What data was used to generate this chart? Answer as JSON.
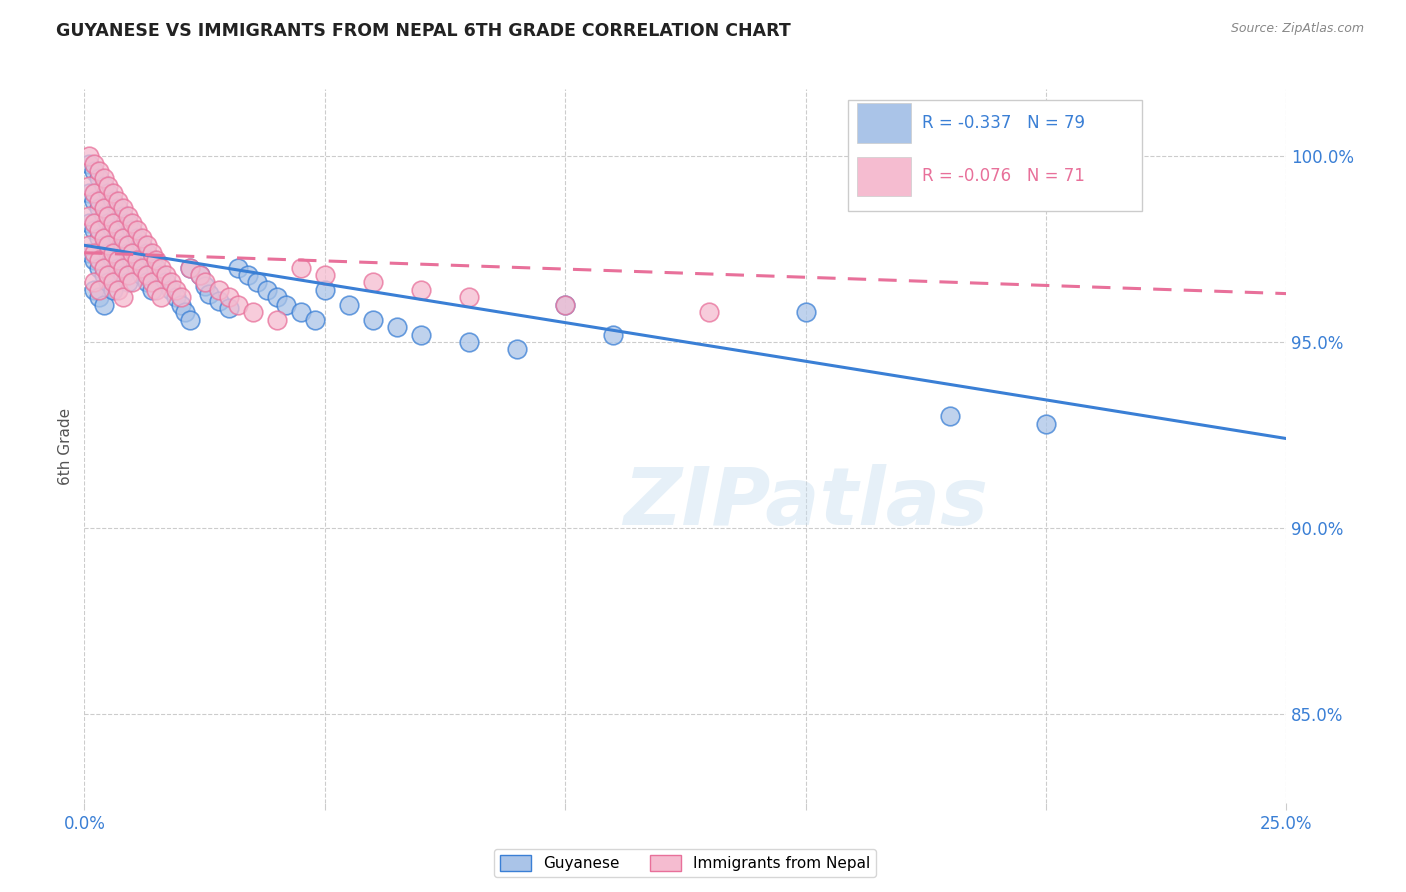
{
  "title": "GUYANESE VS IMMIGRANTS FROM NEPAL 6TH GRADE CORRELATION CHART",
  "source": "Source: ZipAtlas.com",
  "ylabel": "6th Grade",
  "ytick_labels": [
    "85.0%",
    "90.0%",
    "95.0%",
    "100.0%"
  ],
  "ytick_values": [
    0.85,
    0.9,
    0.95,
    1.0
  ],
  "xmin": 0.0,
  "xmax": 0.25,
  "ymin": 0.826,
  "ymax": 1.018,
  "legend_blue_label": "Guyanese",
  "legend_pink_label": "Immigrants from Nepal",
  "legend_R_blue": "R = -0.337",
  "legend_N_blue": "N = 79",
  "legend_R_pink": "R = -0.076",
  "legend_N_pink": "N = 71",
  "watermark": "ZIPatlas",
  "blue_color": "#aac4e8",
  "pink_color": "#f5bcd0",
  "blue_line_color": "#3a7fd5",
  "pink_line_color": "#e8709a",
  "blue_scatter": [
    [
      0.001,
      0.998
    ],
    [
      0.001,
      0.99
    ],
    [
      0.001,
      0.982
    ],
    [
      0.001,
      0.974
    ],
    [
      0.002,
      0.996
    ],
    [
      0.002,
      0.988
    ],
    [
      0.002,
      0.98
    ],
    [
      0.002,
      0.972
    ],
    [
      0.002,
      0.964
    ],
    [
      0.003,
      0.994
    ],
    [
      0.003,
      0.986
    ],
    [
      0.003,
      0.978
    ],
    [
      0.003,
      0.97
    ],
    [
      0.003,
      0.962
    ],
    [
      0.004,
      0.992
    ],
    [
      0.004,
      0.984
    ],
    [
      0.004,
      0.976
    ],
    [
      0.004,
      0.968
    ],
    [
      0.004,
      0.96
    ],
    [
      0.005,
      0.99
    ],
    [
      0.005,
      0.982
    ],
    [
      0.005,
      0.974
    ],
    [
      0.005,
      0.966
    ],
    [
      0.006,
      0.988
    ],
    [
      0.006,
      0.98
    ],
    [
      0.006,
      0.972
    ],
    [
      0.006,
      0.964
    ],
    [
      0.007,
      0.986
    ],
    [
      0.007,
      0.978
    ],
    [
      0.007,
      0.97
    ],
    [
      0.008,
      0.984
    ],
    [
      0.008,
      0.976
    ],
    [
      0.008,
      0.968
    ],
    [
      0.009,
      0.982
    ],
    [
      0.009,
      0.974
    ],
    [
      0.009,
      0.966
    ],
    [
      0.01,
      0.98
    ],
    [
      0.01,
      0.972
    ],
    [
      0.011,
      0.978
    ],
    [
      0.011,
      0.97
    ],
    [
      0.012,
      0.976
    ],
    [
      0.012,
      0.968
    ],
    [
      0.013,
      0.974
    ],
    [
      0.013,
      0.966
    ],
    [
      0.014,
      0.972
    ],
    [
      0.014,
      0.964
    ],
    [
      0.015,
      0.97
    ],
    [
      0.016,
      0.968
    ],
    [
      0.017,
      0.966
    ],
    [
      0.018,
      0.964
    ],
    [
      0.019,
      0.962
    ],
    [
      0.02,
      0.96
    ],
    [
      0.021,
      0.958
    ],
    [
      0.022,
      0.97
    ],
    [
      0.022,
      0.956
    ],
    [
      0.024,
      0.968
    ],
    [
      0.025,
      0.965
    ],
    [
      0.026,
      0.963
    ],
    [
      0.028,
      0.961
    ],
    [
      0.03,
      0.959
    ],
    [
      0.032,
      0.97
    ],
    [
      0.034,
      0.968
    ],
    [
      0.036,
      0.966
    ],
    [
      0.038,
      0.964
    ],
    [
      0.04,
      0.962
    ],
    [
      0.042,
      0.96
    ],
    [
      0.045,
      0.958
    ],
    [
      0.048,
      0.956
    ],
    [
      0.05,
      0.964
    ],
    [
      0.055,
      0.96
    ],
    [
      0.06,
      0.956
    ],
    [
      0.065,
      0.954
    ],
    [
      0.07,
      0.952
    ],
    [
      0.08,
      0.95
    ],
    [
      0.09,
      0.948
    ],
    [
      0.1,
      0.96
    ],
    [
      0.11,
      0.952
    ],
    [
      0.15,
      0.958
    ],
    [
      0.18,
      0.93
    ],
    [
      0.2,
      0.928
    ]
  ],
  "pink_scatter": [
    [
      0.001,
      1.0
    ],
    [
      0.001,
      0.992
    ],
    [
      0.001,
      0.984
    ],
    [
      0.001,
      0.976
    ],
    [
      0.002,
      0.998
    ],
    [
      0.002,
      0.99
    ],
    [
      0.002,
      0.982
    ],
    [
      0.002,
      0.974
    ],
    [
      0.002,
      0.966
    ],
    [
      0.003,
      0.996
    ],
    [
      0.003,
      0.988
    ],
    [
      0.003,
      0.98
    ],
    [
      0.003,
      0.972
    ],
    [
      0.003,
      0.964
    ],
    [
      0.004,
      0.994
    ],
    [
      0.004,
      0.986
    ],
    [
      0.004,
      0.978
    ],
    [
      0.004,
      0.97
    ],
    [
      0.005,
      0.992
    ],
    [
      0.005,
      0.984
    ],
    [
      0.005,
      0.976
    ],
    [
      0.005,
      0.968
    ],
    [
      0.006,
      0.99
    ],
    [
      0.006,
      0.982
    ],
    [
      0.006,
      0.974
    ],
    [
      0.006,
      0.966
    ],
    [
      0.007,
      0.988
    ],
    [
      0.007,
      0.98
    ],
    [
      0.007,
      0.972
    ],
    [
      0.007,
      0.964
    ],
    [
      0.008,
      0.986
    ],
    [
      0.008,
      0.978
    ],
    [
      0.008,
      0.97
    ],
    [
      0.008,
      0.962
    ],
    [
      0.009,
      0.984
    ],
    [
      0.009,
      0.976
    ],
    [
      0.009,
      0.968
    ],
    [
      0.01,
      0.982
    ],
    [
      0.01,
      0.974
    ],
    [
      0.01,
      0.966
    ],
    [
      0.011,
      0.98
    ],
    [
      0.011,
      0.972
    ],
    [
      0.012,
      0.978
    ],
    [
      0.012,
      0.97
    ],
    [
      0.013,
      0.976
    ],
    [
      0.013,
      0.968
    ],
    [
      0.014,
      0.974
    ],
    [
      0.014,
      0.966
    ],
    [
      0.015,
      0.972
    ],
    [
      0.015,
      0.964
    ],
    [
      0.016,
      0.97
    ],
    [
      0.016,
      0.962
    ],
    [
      0.017,
      0.968
    ],
    [
      0.018,
      0.966
    ],
    [
      0.019,
      0.964
    ],
    [
      0.02,
      0.962
    ],
    [
      0.022,
      0.97
    ],
    [
      0.024,
      0.968
    ],
    [
      0.025,
      0.966
    ],
    [
      0.028,
      0.964
    ],
    [
      0.03,
      0.962
    ],
    [
      0.032,
      0.96
    ],
    [
      0.035,
      0.958
    ],
    [
      0.04,
      0.956
    ],
    [
      0.045,
      0.97
    ],
    [
      0.05,
      0.968
    ],
    [
      0.06,
      0.966
    ],
    [
      0.07,
      0.964
    ],
    [
      0.08,
      0.962
    ],
    [
      0.1,
      0.96
    ],
    [
      0.13,
      0.958
    ]
  ],
  "blue_line_x": [
    0.0,
    0.25
  ],
  "blue_line_y": [
    0.976,
    0.924
  ],
  "pink_line_x": [
    0.0,
    0.25
  ],
  "pink_line_y": [
    0.974,
    0.963
  ]
}
